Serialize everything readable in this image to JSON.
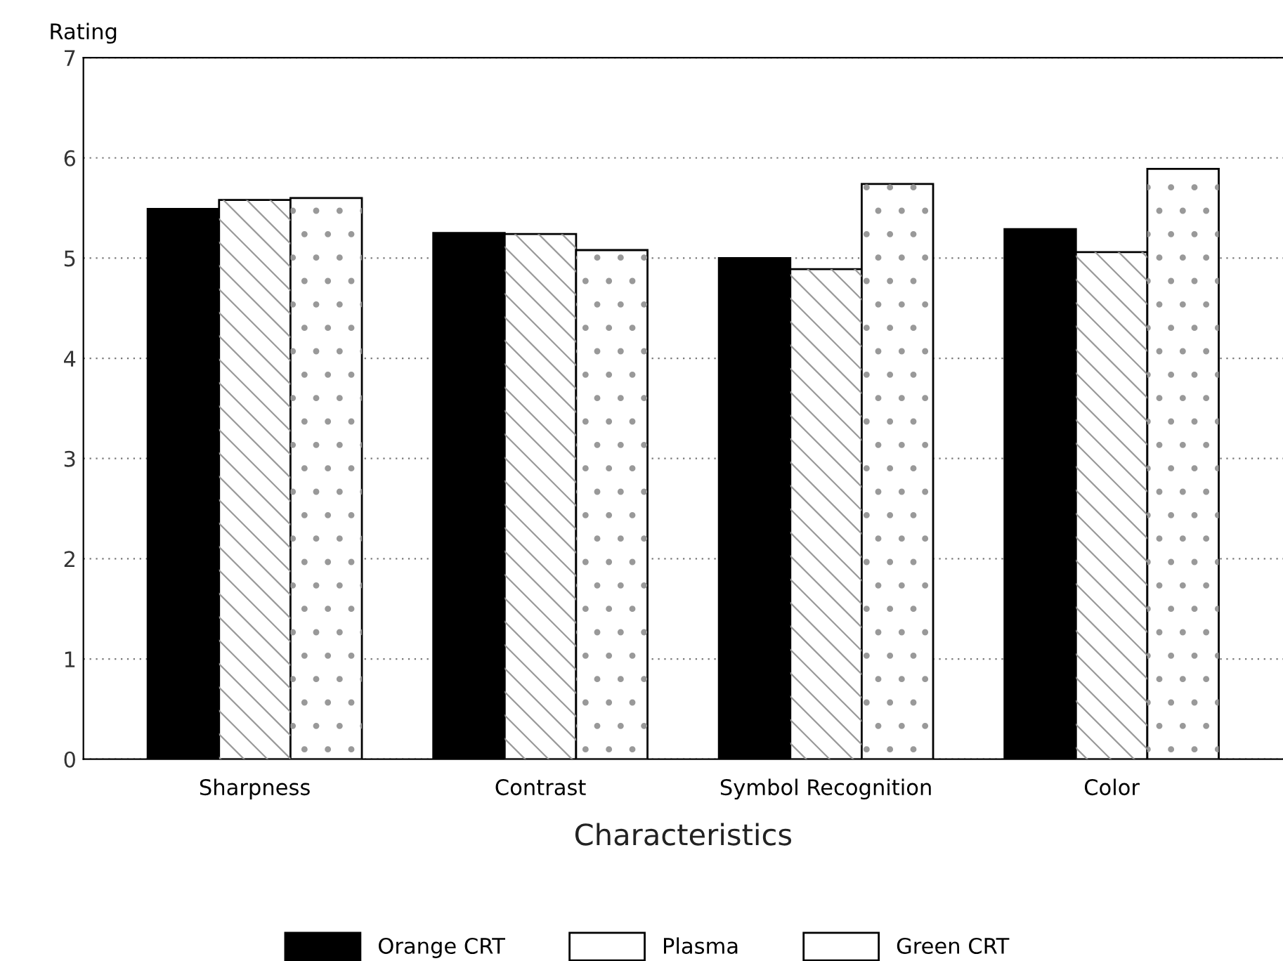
{
  "chart_data": {
    "type": "bar",
    "ylabel": "Rating",
    "xlabel": "Characteristics",
    "categories": [
      "Sharpness",
      "Contrast",
      "Symbol Recognition",
      "Color"
    ],
    "series": [
      {
        "name": "Orange CRT",
        "color": "#000000",
        "values": [
          5.49,
          5.25,
          5.0,
          5.29
        ]
      },
      {
        "name": "Plasma",
        "color": "#ffffff",
        "values": [
          5.58,
          5.24,
          4.89,
          5.06
        ]
      },
      {
        "name": "Green CRT",
        "color": "#ffffff",
        "values": [
          5.6,
          5.08,
          5.74,
          5.89
        ]
      }
    ],
    "ylim": [
      0,
      7
    ],
    "yticks": [
      0,
      1,
      2,
      3,
      4,
      5,
      6,
      7
    ],
    "grid": "y",
    "legend": "bottom"
  }
}
